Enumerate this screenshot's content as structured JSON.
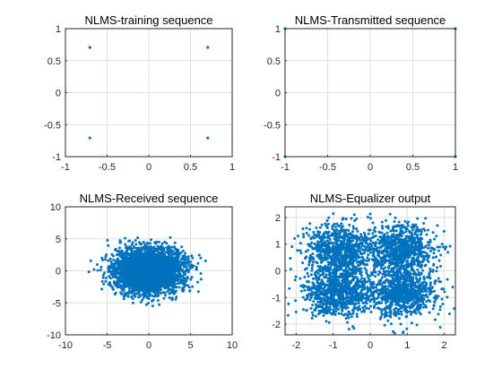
{
  "chart_data": [
    {
      "type": "scatter",
      "title": "NLMS-training sequence",
      "xlim": [
        -1,
        1
      ],
      "ylim": [
        -1,
        1
      ],
      "xticks": [
        -1,
        -0.5,
        0,
        0.5,
        1
      ],
      "yticks": [
        -1,
        -0.5,
        0,
        0.5,
        1
      ],
      "xtick_labels": [
        "-1",
        "-0.5",
        "0",
        "0.5",
        "1"
      ],
      "ytick_labels": [
        "-1",
        "-0.5",
        "0",
        "0.5",
        "1"
      ],
      "grid": true,
      "color": "#0072BD",
      "points": [
        [
          -0.707,
          0.707
        ],
        [
          0.707,
          0.707
        ],
        [
          -0.707,
          -0.707
        ],
        [
          0.707,
          -0.707
        ]
      ]
    },
    {
      "type": "scatter",
      "title": "NLMS-Transmitted sequence",
      "xlim": [
        -1,
        1
      ],
      "ylim": [
        -1,
        1
      ],
      "xticks": [
        -1,
        -0.5,
        0,
        0.5,
        1
      ],
      "yticks": [
        -1,
        -0.5,
        0,
        0.5,
        1
      ],
      "xtick_labels": [
        "-1",
        "-0.5",
        "0",
        "0.5",
        "1"
      ],
      "ytick_labels": [
        "-1",
        "-0.5",
        "0",
        "0.5",
        "1"
      ],
      "grid": true,
      "color": "#0072BD",
      "points": [
        [
          -1,
          1
        ],
        [
          1,
          1
        ],
        [
          -1,
          -1
        ],
        [
          1,
          -1
        ]
      ]
    },
    {
      "type": "scatter",
      "title": "NLMS-Received sequence",
      "xlim": [
        -10,
        10
      ],
      "ylim": [
        -10,
        10
      ],
      "xticks": [
        -10,
        -5,
        0,
        5,
        10
      ],
      "yticks": [
        -10,
        -5,
        0,
        5,
        10
      ],
      "xtick_labels": [
        "-10",
        "-5",
        "0",
        "5",
        "10"
      ],
      "ytick_labels": [
        "-10",
        "-5",
        "0",
        "5",
        "10"
      ],
      "grid": true,
      "color": "#0072BD",
      "cloud": {
        "count": 3200,
        "centers": [
          [
            -1,
            1
          ],
          [
            1,
            1
          ],
          [
            -1,
            -1
          ],
          [
            1,
            -1
          ]
        ],
        "sigma": [
          2.0,
          1.6
        ],
        "x_range": [
          -7.3,
          7.3
        ],
        "y_range": [
          -6.3,
          6.3
        ]
      }
    },
    {
      "type": "scatter",
      "title": "NLMS-Equalizer output",
      "xlim": [
        -2.3,
        2.3
      ],
      "ylim": [
        -2.4,
        2.4
      ],
      "xticks": [
        -2,
        -1,
        0,
        1,
        2
      ],
      "yticks": [
        -2,
        -1,
        0,
        1,
        2
      ],
      "xtick_labels": [
        "-2",
        "-1",
        "0",
        "1",
        "2"
      ],
      "ytick_labels": [
        "-2",
        "-1",
        "0",
        "1",
        "2"
      ],
      "grid": true,
      "color": "#0072BD",
      "cloud": {
        "count": 3200,
        "centers": [
          [
            -0.85,
            0.8
          ],
          [
            0.85,
            0.8
          ],
          [
            -0.85,
            -0.8
          ],
          [
            0.85,
            -0.8
          ]
        ],
        "sigma": [
          0.5,
          0.52
        ],
        "x_range": [
          -2.3,
          2.3
        ],
        "y_range": [
          -2.4,
          2.4
        ]
      }
    }
  ]
}
